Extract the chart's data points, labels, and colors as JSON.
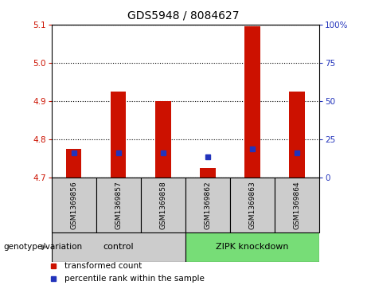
{
  "title": "GDS5948 / 8084627",
  "samples": [
    "GSM1369856",
    "GSM1369857",
    "GSM1369858",
    "GSM1369862",
    "GSM1369863",
    "GSM1369864"
  ],
  "bar_tops": [
    4.775,
    4.925,
    4.9,
    4.725,
    5.095,
    4.925
  ],
  "bar_base": 4.7,
  "blue_y": [
    4.765,
    4.765,
    4.765,
    4.755,
    4.775,
    4.765
  ],
  "ylim": [
    4.7,
    5.1
  ],
  "yticks_left": [
    4.7,
    4.8,
    4.9,
    5.0,
    5.1
  ],
  "yticks_right_labels": [
    "0",
    "25",
    "50",
    "75",
    "100%"
  ],
  "right_tick_positions": [
    4.7,
    4.8,
    4.9,
    5.0,
    5.1
  ],
  "control_label": "control",
  "zipk_label": "ZIPK knockdown",
  "group_label": "genotype/variation",
  "legend_red": "transformed count",
  "legend_blue": "percentile rank within the sample",
  "bar_color": "#cc1100",
  "blue_color": "#2233bb",
  "control_bg": "#cccccc",
  "zipk_bg": "#77dd77",
  "bar_width": 0.35,
  "title_fontsize": 10,
  "tick_fontsize": 7.5,
  "label_fontsize": 7.5
}
